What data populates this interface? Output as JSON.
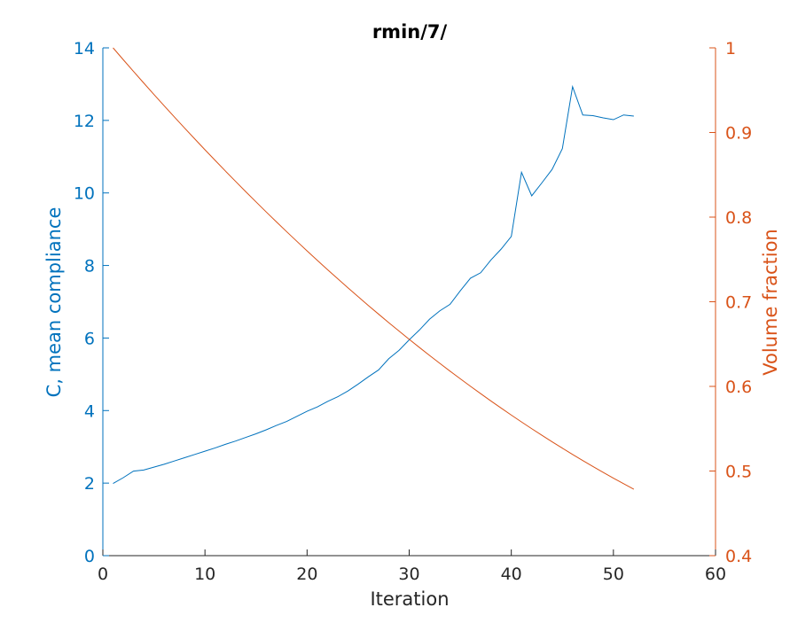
{
  "chart_data": {
    "type": "line",
    "title": "rmin/7/",
    "xlabel": "Iteration",
    "ylabel_left": "C, mean compliance",
    "ylabel_right": "Volume fraction",
    "xlim": [
      0,
      60
    ],
    "ylim_left": [
      0,
      14
    ],
    "ylim_right": [
      0.4,
      1
    ],
    "xticks": [
      "0",
      "10",
      "20",
      "30",
      "40",
      "50",
      "60"
    ],
    "yticks_left": [
      "0",
      "2",
      "4",
      "6",
      "8",
      "10",
      "12",
      "14"
    ],
    "yticks_right": [
      "0.4",
      "0.5",
      "0.6",
      "0.7",
      "0.8",
      "0.9",
      "1"
    ],
    "grid": false,
    "colors": {
      "left": "#0072BD",
      "right": "#D95319",
      "axis": "#262626"
    },
    "series": [
      {
        "axis": "left",
        "x": [
          1,
          2,
          3,
          4,
          5,
          6,
          7,
          8,
          9,
          10,
          11,
          12,
          13,
          14,
          15,
          16,
          17,
          18,
          19,
          20,
          21,
          22,
          23,
          24,
          25,
          26,
          27,
          28,
          29,
          30,
          31,
          32,
          33,
          34,
          35,
          36,
          37,
          38,
          39,
          40,
          41,
          42,
          43,
          44,
          45,
          46,
          47,
          48,
          49,
          50,
          51,
          52
        ],
        "values": [
          1.99,
          2.15,
          2.33,
          2.36,
          2.44,
          2.52,
          2.61,
          2.7,
          2.79,
          2.88,
          2.97,
          3.07,
          3.16,
          3.26,
          3.36,
          3.47,
          3.59,
          3.7,
          3.84,
          3.98,
          4.1,
          4.25,
          4.38,
          4.54,
          4.73,
          4.93,
          5.12,
          5.43,
          5.66,
          5.95,
          6.22,
          6.52,
          6.75,
          6.93,
          7.3,
          7.65,
          7.8,
          8.15,
          8.45,
          8.8,
          10.57,
          9.92,
          10.28,
          10.65,
          11.22,
          12.93,
          12.15,
          12.13,
          12.07,
          12.02,
          12.15,
          12.12
        ]
      },
      {
        "axis": "right",
        "x": [
          1,
          2,
          3,
          4,
          5,
          6,
          7,
          8,
          9,
          10,
          11,
          12,
          13,
          14,
          15,
          16,
          17,
          18,
          19,
          20,
          21,
          22,
          23,
          24,
          25,
          26,
          27,
          28,
          29,
          30,
          31,
          32,
          33,
          34,
          35,
          36,
          37,
          38,
          39,
          40,
          41,
          42,
          43,
          44,
          45,
          46,
          47,
          48,
          49,
          50,
          51,
          52
        ],
        "values": [
          1.0,
          0.986,
          0.9722,
          0.9585,
          0.945,
          0.9316,
          0.9184,
          0.9053,
          0.8924,
          0.8796,
          0.867,
          0.8545,
          0.8422,
          0.83,
          0.818,
          0.8061,
          0.7944,
          0.7828,
          0.7714,
          0.7601,
          0.749,
          0.738,
          0.7272,
          0.7165,
          0.706,
          0.6956,
          0.6854,
          0.6753,
          0.6654,
          0.6556,
          0.646,
          0.6365,
          0.6272,
          0.618,
          0.609,
          0.6001,
          0.5914,
          0.5828,
          0.5744,
          0.5661,
          0.558,
          0.55,
          0.5422,
          0.5345,
          0.527,
          0.5196,
          0.5124,
          0.5053,
          0.4984,
          0.4916,
          0.485,
          0.4785
        ]
      }
    ]
  }
}
